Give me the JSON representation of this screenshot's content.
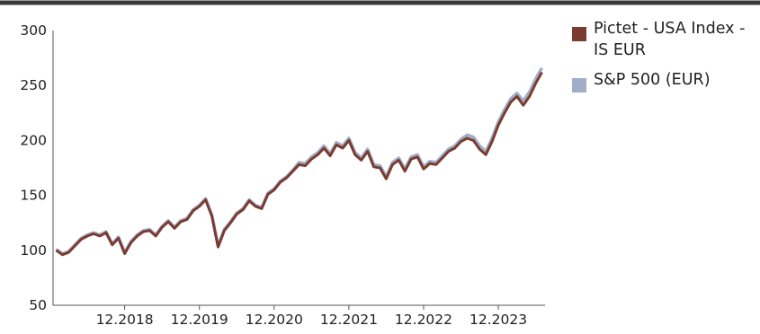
{
  "chart_data": {
    "type": "line",
    "title": "",
    "xlabel": "",
    "ylabel": "",
    "ylim": [
      50,
      300
    ],
    "yticks": [
      50,
      100,
      150,
      200,
      250,
      300
    ],
    "xlim": [
      "2018-01",
      "2024-07"
    ],
    "xticks": [
      "12.2018",
      "12.2019",
      "12.2020",
      "12.2021",
      "12.2022",
      "12.2023"
    ],
    "xtick_positions": [
      "2018-12",
      "2019-12",
      "2020-12",
      "2021-12",
      "2022-12",
      "2023-12"
    ],
    "grid": false,
    "legend_position": "top-right",
    "x": [
      "2018-01",
      "2018-02",
      "2018-03",
      "2018-04",
      "2018-05",
      "2018-06",
      "2018-07",
      "2018-08",
      "2018-09",
      "2018-10",
      "2018-11",
      "2018-12",
      "2019-01",
      "2019-02",
      "2019-03",
      "2019-04",
      "2019-05",
      "2019-06",
      "2019-07",
      "2019-08",
      "2019-09",
      "2019-10",
      "2019-11",
      "2019-12",
      "2020-01",
      "2020-02",
      "2020-03",
      "2020-04",
      "2020-05",
      "2020-06",
      "2020-07",
      "2020-08",
      "2020-09",
      "2020-10",
      "2020-11",
      "2020-12",
      "2021-01",
      "2021-02",
      "2021-03",
      "2021-04",
      "2021-05",
      "2021-06",
      "2021-07",
      "2021-08",
      "2021-09",
      "2021-10",
      "2021-11",
      "2021-12",
      "2022-01",
      "2022-02",
      "2022-03",
      "2022-04",
      "2022-05",
      "2022-06",
      "2022-07",
      "2022-08",
      "2022-09",
      "2022-10",
      "2022-11",
      "2022-12",
      "2023-01",
      "2023-02",
      "2023-03",
      "2023-04",
      "2023-05",
      "2023-06",
      "2023-07",
      "2023-08",
      "2023-09",
      "2023-10",
      "2023-11",
      "2023-12",
      "2024-01",
      "2024-02",
      "2024-03",
      "2024-04",
      "2024-05",
      "2024-06",
      "2024-07"
    ],
    "series": [
      {
        "name": "Pictet - USA Index - IS EUR",
        "color": "#7b3b30",
        "values": [
          100,
          96,
          98,
          104,
          110,
          113,
          115,
          113,
          116,
          105,
          111,
          97,
          107,
          113,
          117,
          118,
          113,
          121,
          126,
          120,
          126,
          128,
          136,
          140,
          146,
          131,
          103,
          118,
          125,
          133,
          137,
          145,
          140,
          138,
          151,
          155,
          162,
          166,
          172,
          178,
          177,
          183,
          187,
          193,
          186,
          196,
          193,
          200,
          187,
          182,
          190,
          176,
          175,
          165,
          178,
          182,
          172,
          183,
          185,
          174,
          179,
          178,
          184,
          190,
          193,
          199,
          202,
          200,
          192,
          187,
          199,
          214,
          225,
          235,
          240,
          232,
          240,
          252,
          262
        ]
      },
      {
        "name": "S&P 500 (EUR)",
        "color": "#a0aec8",
        "values": [
          101,
          97,
          99,
          105,
          111,
          114,
          116,
          114,
          117,
          106,
          112,
          98,
          108,
          114,
          118,
          119,
          114,
          122,
          127,
          121,
          127,
          129,
          137,
          141,
          147,
          132,
          104,
          119,
          126,
          134,
          138,
          146,
          141,
          139,
          152,
          156,
          163,
          167,
          173,
          180,
          179,
          185,
          189,
          195,
          188,
          198,
          195,
          202,
          189,
          184,
          192,
          178,
          177,
          167,
          180,
          184,
          174,
          185,
          187,
          176,
          181,
          180,
          186,
          192,
          195,
          201,
          205,
          203,
          195,
          190,
          202,
          217,
          228,
          238,
          243,
          236,
          244,
          256,
          266
        ]
      }
    ]
  }
}
